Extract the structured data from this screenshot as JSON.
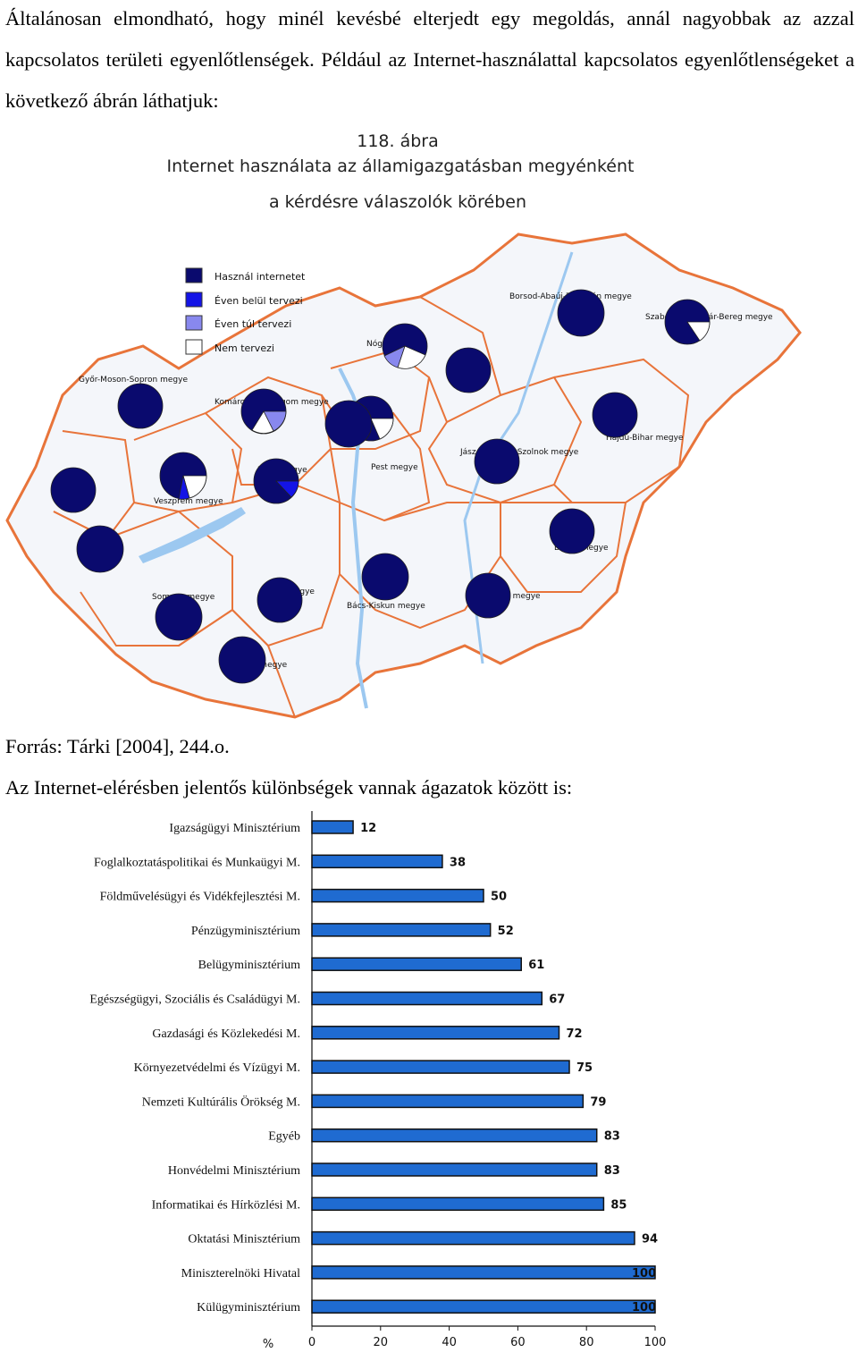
{
  "text": {
    "intro": "Általánosan elmondható, hogy minél kevésbé elterjedt egy megoldás, annál nagyobbak az azzal kapcsolatos területi egyenlőtlenségek. Például az Internet-használattal kapcsolatos egyenlőtlenségeket a következő ábrán láthatjuk:",
    "source": "Forrás: Tárki [2004], 244.o.",
    "sector_intro": "Az Internet-elérésben jelentős különbségek vannak ágazatok között is:"
  },
  "map": {
    "title_line1": "118. ábra",
    "title_line2": "Internet használata az államigazgatásban megyénként",
    "title_line3": "a kérdésre válaszolók körében",
    "legend": [
      {
        "label": "Használ internetet",
        "color": "#0a0a6e"
      },
      {
        "label": "Éven belül tervezi",
        "color": "#1414e6"
      },
      {
        "label": "Éven túl tervezi",
        "color": "#8888ee"
      },
      {
        "label": "Nem tervezi",
        "color": "#ffffff"
      }
    ],
    "counties": [
      {
        "name": "Győr-Moson-Sopron megye"
      },
      {
        "name": "Komárom-Esztergom megye"
      },
      {
        "name": "Fejér megye"
      },
      {
        "name": "Veszprém megye"
      },
      {
        "name": "Pest megye"
      },
      {
        "name": "Borsod-Abaúj-Zemplén megye"
      },
      {
        "name": "Szabolcs-Szatmár-Bereg megye"
      },
      {
        "name": "Hajdú-Bihar megye"
      },
      {
        "name": "Jász-Nagykun-Szolnok megye"
      },
      {
        "name": "Békés megye"
      },
      {
        "name": "Csongrád megye"
      },
      {
        "name": "Bács-Kiskun megye"
      },
      {
        "name": "Tolna megye"
      },
      {
        "name": "Somogy megye"
      },
      {
        "name": "Baranya megye"
      },
      {
        "name": "Nógrád"
      }
    ],
    "colors": {
      "border": "#e8743a",
      "water": "#9cc8f0",
      "pie_dark": "#0a0a6e"
    }
  },
  "chart_data": {
    "type": "bar",
    "orientation": "horizontal",
    "categories": [
      "Igazságügyi Minisztérium",
      "Foglalkoztatáspolitikai és Munkaügyi M.",
      "Földművelésügyi és Vidékfejlesztési M.",
      "Pénzügyminisztérium",
      "Belügyminisztérium",
      "Egészségügyi, Szociális és Családügyi M.",
      "Gazdasági és Közlekedési M.",
      "Környezetvédelmi és Vízügyi M.",
      "Nemzeti Kultúrális Örökség M.",
      "Egyéb",
      "Honvédelmi Minisztérium",
      "Informatikai és Hírközlési M.",
      "Oktatási Minisztérium",
      "Miniszterelnöki Hivatal",
      "Külügyminisztérium"
    ],
    "values": [
      12,
      38,
      50,
      52,
      61,
      67,
      72,
      75,
      79,
      83,
      83,
      85,
      94,
      100,
      100
    ],
    "value_labels": [
      "12",
      "38",
      "50",
      "52",
      "61",
      "67",
      "72",
      "75",
      "79",
      "83",
      "83",
      "85",
      "94",
      "100",
      "100"
    ],
    "xlabel": "%",
    "xlim": [
      0,
      100
    ],
    "ticks": [
      "0",
      "20",
      "40",
      "60",
      "80",
      "100"
    ],
    "bar_color": "#1f6bd1",
    "grid": false
  }
}
